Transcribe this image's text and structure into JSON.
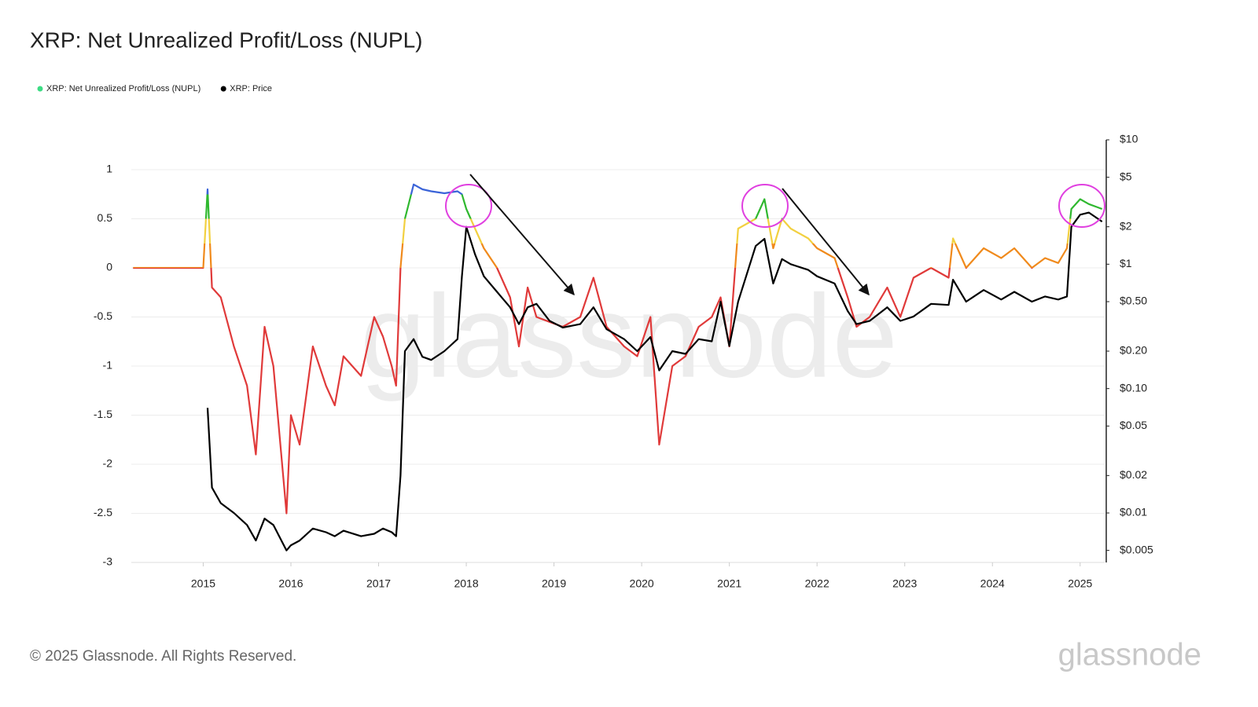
{
  "chart_data": {
    "type": "line",
    "title": "XRP: Net Unrealized Profit/Loss (NUPL)",
    "copyright": "© 2025 Glassnode. All Rights Reserved.",
    "watermark": "glassnode",
    "logo": "glassnode",
    "x": [
      2014.2,
      2015.0,
      2015.05,
      2015.1,
      2015.2,
      2015.35,
      2015.5,
      2015.6,
      2015.7,
      2015.8,
      2015.95,
      2016.0,
      2016.1,
      2016.25,
      2016.4,
      2016.5,
      2016.6,
      2016.8,
      2016.95,
      2017.05,
      2017.15,
      2017.2,
      2017.25,
      2017.3,
      2017.4,
      2017.5,
      2017.6,
      2017.75,
      2017.9,
      2017.95,
      2018.0,
      2018.1,
      2018.2,
      2018.35,
      2018.5,
      2018.6,
      2018.7,
      2018.8,
      2018.95,
      2019.1,
      2019.3,
      2019.45,
      2019.6,
      2019.8,
      2019.95,
      2020.1,
      2020.2,
      2020.35,
      2020.5,
      2020.65,
      2020.8,
      2020.9,
      2021.0,
      2021.1,
      2021.3,
      2021.4,
      2021.5,
      2021.6,
      2021.7,
      2021.9,
      2022.0,
      2022.2,
      2022.35,
      2022.45,
      2022.6,
      2022.8,
      2022.95,
      2023.1,
      2023.3,
      2023.5,
      2023.55,
      2023.7,
      2023.9,
      2024.1,
      2024.25,
      2024.45,
      2024.6,
      2024.75,
      2024.85,
      2024.9,
      2025.0,
      2025.1,
      2025.25
    ],
    "series": [
      {
        "name": "XRP: Net Unrealized Profit/Loss (NUPL)",
        "color": "#3ddc84",
        "zones": [
          {
            "from": -3,
            "color": "#e03a3a"
          },
          {
            "from": 0,
            "color": "#f08a1c"
          },
          {
            "from": 0.25,
            "color": "#f2d040"
          },
          {
            "from": 0.5,
            "color": "#2fb82f"
          },
          {
            "from": 0.75,
            "color": "#3a63d8"
          }
        ],
        "values": [
          0,
          0,
          0.8,
          -0.2,
          -0.3,
          -0.8,
          -1.2,
          -1.9,
          -0.6,
          -1.0,
          -2.5,
          -1.5,
          -1.8,
          -0.8,
          -1.2,
          -1.4,
          -0.9,
          -1.1,
          -0.5,
          -0.7,
          -1.0,
          -1.2,
          0.0,
          0.5,
          0.85,
          0.8,
          0.78,
          0.76,
          0.78,
          0.75,
          0.6,
          0.4,
          0.2,
          0.0,
          -0.3,
          -0.8,
          -0.2,
          -0.5,
          -0.55,
          -0.6,
          -0.5,
          -0.1,
          -0.6,
          -0.8,
          -0.9,
          -0.5,
          -1.8,
          -1.0,
          -0.9,
          -0.6,
          -0.5,
          -0.3,
          -0.8,
          0.4,
          0.5,
          0.7,
          0.2,
          0.5,
          0.4,
          0.3,
          0.2,
          0.1,
          -0.3,
          -0.6,
          -0.5,
          -0.2,
          -0.5,
          -0.1,
          0.0,
          -0.1,
          0.3,
          0.0,
          0.2,
          0.1,
          0.2,
          0.0,
          0.1,
          0.05,
          0.2,
          0.6,
          0.7,
          0.65,
          0.6
        ]
      },
      {
        "name": "XRP: Price",
        "color": "#000000",
        "axis": "y2",
        "values": [
          null,
          null,
          0.07,
          0.016,
          0.012,
          0.01,
          0.008,
          0.006,
          0.009,
          0.008,
          0.005,
          0.0055,
          0.006,
          0.0075,
          0.007,
          0.0065,
          0.0072,
          0.0065,
          0.0068,
          0.0075,
          0.007,
          0.0065,
          0.02,
          0.2,
          0.25,
          0.18,
          0.17,
          0.2,
          0.25,
          0.8,
          2.0,
          1.2,
          0.8,
          0.6,
          0.45,
          0.33,
          0.45,
          0.48,
          0.35,
          0.31,
          0.33,
          0.45,
          0.3,
          0.25,
          0.2,
          0.26,
          0.14,
          0.2,
          0.19,
          0.25,
          0.24,
          0.5,
          0.22,
          0.5,
          1.4,
          1.6,
          0.7,
          1.1,
          1.0,
          0.9,
          0.8,
          0.7,
          0.42,
          0.33,
          0.35,
          0.45,
          0.35,
          0.38,
          0.48,
          0.47,
          0.75,
          0.5,
          0.62,
          0.52,
          0.6,
          0.5,
          0.55,
          0.52,
          0.55,
          2.0,
          2.5,
          2.6,
          2.2
        ]
      }
    ],
    "xlim": [
      2014.18,
      2025.28
    ],
    "xticks": [
      2015,
      2016,
      2017,
      2018,
      2019,
      2020,
      2021,
      2022,
      2023,
      2024,
      2025
    ],
    "ylim": [
      -3,
      1.304
    ],
    "yticks": [
      1,
      0.5,
      0,
      -0.5,
      -1,
      -1.5,
      -2,
      -2.5,
      -3
    ],
    "y2lim": [
      0.004,
      10
    ],
    "y2log": true,
    "y2ticks": [
      {
        "value": 10,
        "label": "$10"
      },
      {
        "value": 5,
        "label": "$5"
      },
      {
        "value": 2,
        "label": "$2"
      },
      {
        "value": 1,
        "label": "$1"
      },
      {
        "value": 0.5,
        "label": "$0.50"
      },
      {
        "value": 0.2,
        "label": "$0.20"
      },
      {
        "value": 0.1,
        "label": "$0.10"
      },
      {
        "value": 0.05,
        "label": "$0.05"
      },
      {
        "value": 0.02,
        "label": "$0.02"
      },
      {
        "value": 0.01,
        "label": "$0.01"
      },
      {
        "value": 0.005,
        "label": "$0.005"
      }
    ],
    "grid": true
  }
}
